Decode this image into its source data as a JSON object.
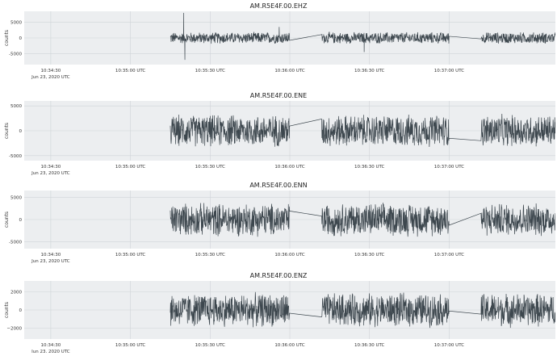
{
  "chart_data": [
    {
      "type": "line",
      "title": "AM.R5E4F.00.EHZ",
      "ylabel": "counts",
      "yticks": [
        5000,
        0,
        -5000
      ],
      "ytick_labels": [
        "5000",
        "0",
        "-5000"
      ],
      "ylim": [
        -8500,
        8500
      ],
      "x_tick_labels": [
        "10:34:30",
        "10:35:00 UTC",
        "10:35:30 UTC",
        "10:36:00 UTC",
        "10:36:30 UTC",
        "10:37:00 UTC"
      ],
      "x_date_label": "Jun 23, 2020 UTC",
      "xlim_seconds_after_10_34_20": [
        0,
        200
      ],
      "series": [
        {
          "segments": [
            {
              "start": "10:35:15",
              "end": "10:36:00",
              "amplitude": 2000
            },
            {
              "start": "10:36:12",
              "end": "10:37:00",
              "amplitude": 2000
            },
            {
              "start": "10:37:12",
              "end": "10:37:40",
              "amplitude": 2000
            }
          ],
          "spikes": [
            {
              "time": "10:35:20",
              "value": 8000
            },
            {
              "time": "10:35:20.5",
              "value": -7000
            },
            {
              "time": "10:35:56",
              "value": 3500
            },
            {
              "time": "10:36:28",
              "value": -4500
            }
          ]
        }
      ]
    },
    {
      "type": "line",
      "title": "AM.R5E4F.00.ENE",
      "ylabel": "counts",
      "yticks": [
        5000,
        0,
        -5000
      ],
      "ytick_labels": [
        "5000",
        "0",
        "-5000"
      ],
      "ylim": [
        -6000,
        6000
      ],
      "x_tick_labels": [
        "10:34:30",
        "10:35:00 UTC",
        "10:35:30 UTC",
        "10:36:00 UTC",
        "10:36:30 UTC",
        "10:37:00 UTC"
      ],
      "x_date_label": "Jun 23, 2020 UTC",
      "series": [
        {
          "segments": [
            {
              "start": "10:35:15",
              "end": "10:36:00",
              "amplitude": 3500
            },
            {
              "start": "10:36:12",
              "end": "10:37:00",
              "amplitude": 3500
            },
            {
              "start": "10:37:12",
              "end": "10:37:40",
              "amplitude": 3500
            }
          ]
        }
      ]
    },
    {
      "type": "line",
      "title": "AM.R5E4F.00.ENN",
      "ylabel": "counts",
      "yticks": [
        5000,
        0,
        -5000
      ],
      "ytick_labels": [
        "5000",
        "0",
        "-5000"
      ],
      "ylim": [
        -6500,
        6500
      ],
      "x_tick_labels": [
        "10:34:30",
        "10:35:00 UTC",
        "10:35:30 UTC",
        "10:36:00 UTC",
        "10:36:30 UTC",
        "10:37:00 UTC"
      ],
      "x_date_label": "Jun 23, 2020 UTC",
      "series": [
        {
          "segments": [
            {
              "start": "10:35:15",
              "end": "10:36:00",
              "amplitude": 4000
            },
            {
              "start": "10:36:12",
              "end": "10:37:00",
              "amplitude": 4000
            },
            {
              "start": "10:37:12",
              "end": "10:37:40",
              "amplitude": 4000
            }
          ]
        }
      ]
    },
    {
      "type": "line",
      "title": "AM.R5E4F.00.ENZ",
      "ylabel": "counts",
      "yticks": [
        2000,
        0,
        -2000
      ],
      "ytick_labels": [
        "2000",
        "0",
        "−2000"
      ],
      "ylim": [
        -3200,
        3200
      ],
      "x_tick_labels": [
        "10:34:30",
        "10:35:00 UTC",
        "10:35:30 UTC",
        "10:36:00 UTC",
        "10:36:30 UTC",
        "10:37:00 UTC"
      ],
      "x_date_label": "Jun 23, 2020 UTC",
      "series": [
        {
          "segments": [
            {
              "start": "10:35:15",
              "end": "10:36:00",
              "amplitude": 2000
            },
            {
              "start": "10:36:12",
              "end": "10:37:00",
              "amplitude": 2000
            },
            {
              "start": "10:37:12",
              "end": "10:37:40",
              "amplitude": 2000
            }
          ]
        }
      ]
    }
  ],
  "colors": {
    "plot_background": "#eceef0",
    "trace": "#3d474e",
    "grid": "#d0d4d8"
  }
}
